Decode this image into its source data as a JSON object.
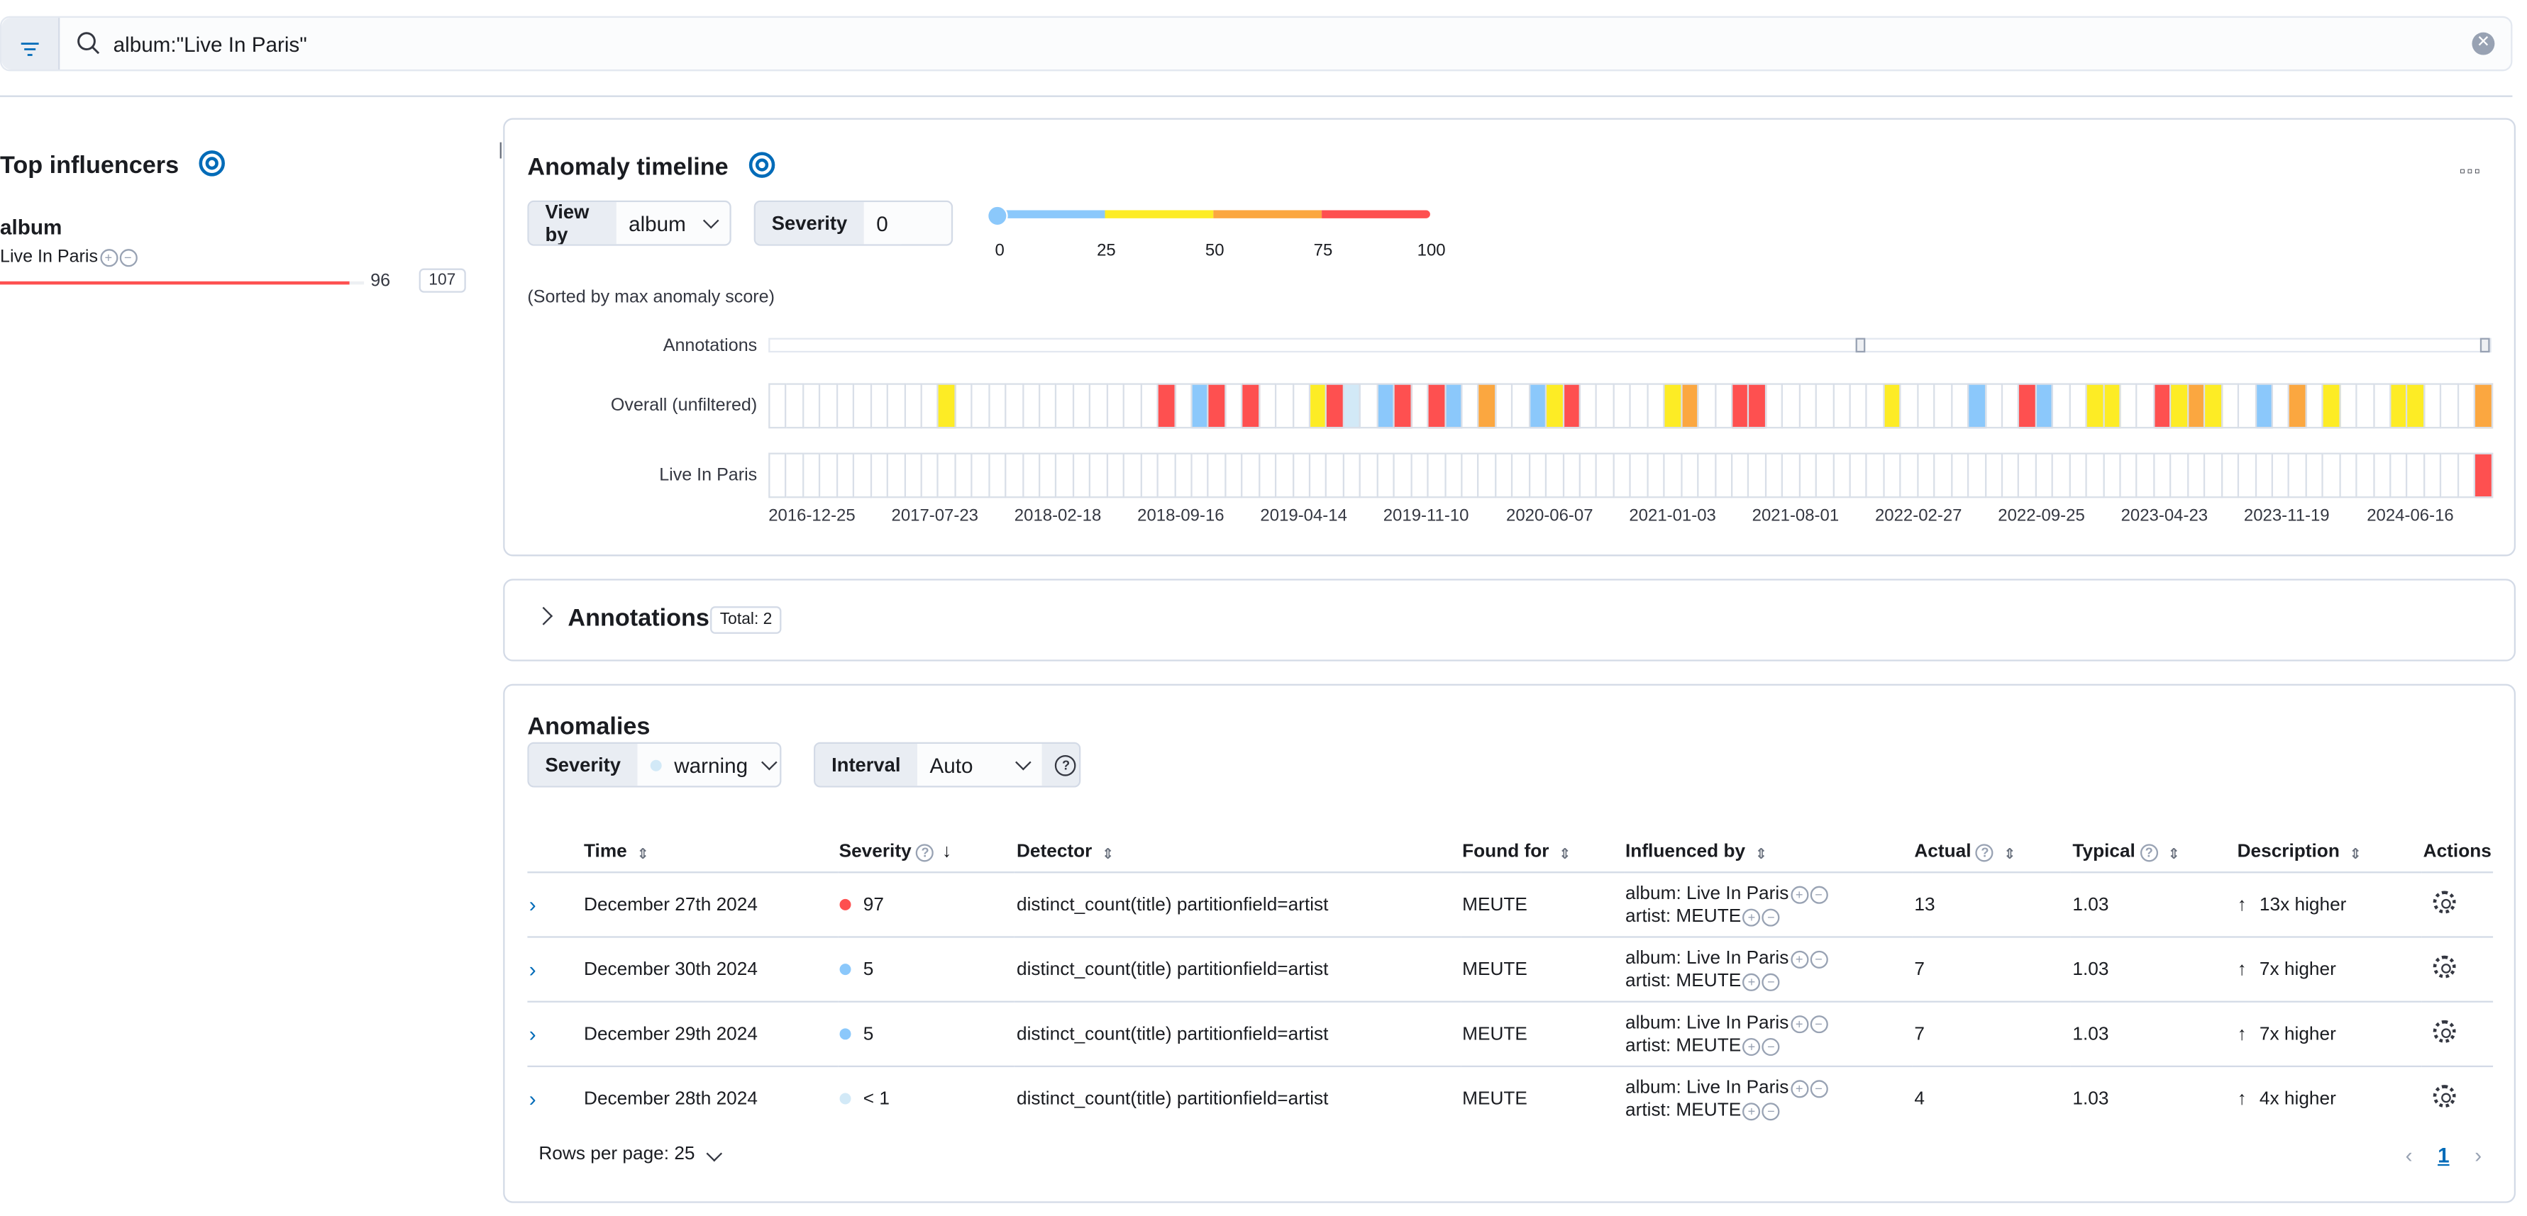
{
  "search": {
    "query": "album:\"Live In Paris\""
  },
  "influencers": {
    "title": "Top influencers",
    "field": "album",
    "item": {
      "name": "Live In Paris",
      "score": "96",
      "count": "107",
      "fill": 0.96
    }
  },
  "timeline": {
    "title": "Anomaly timeline",
    "view_by_label": "View by",
    "view_by_value": "album",
    "severity_label": "Severity",
    "severity_value": "0",
    "scale_ticks": [
      "0",
      "25",
      "50",
      "75",
      "100"
    ],
    "sorted_note": "(Sorted by max anomaly score)",
    "lane_labels": [
      "Annotations",
      "Overall (unfiltered)",
      "Live In Paris"
    ],
    "x_ticks": [
      "2016-12-25",
      "2017-07-23",
      "2018-02-18",
      "2018-09-16",
      "2019-04-14",
      "2019-11-10",
      "2020-06-07",
      "2021-01-03",
      "2021-08-01",
      "2022-02-27",
      "2022-09-25",
      "2023-04-23",
      "2023-11-19",
      "2024-06-16"
    ],
    "overall_cells": [
      "",
      "",
      "",
      "",
      "",
      "",
      "",
      "",
      "",
      "",
      "y",
      "",
      "",
      "",
      "",
      "",
      "",
      "",
      "",
      "",
      "",
      "",
      "",
      "r",
      "",
      "b",
      "r",
      "",
      "r",
      "",
      "",
      "",
      "y",
      "r",
      "l",
      "",
      "b",
      "r",
      "",
      "r",
      "b",
      "",
      "o",
      "",
      "",
      "b",
      "y",
      "r",
      "",
      "",
      "",
      "",
      "",
      "y",
      "o",
      "",
      "",
      "r",
      "r",
      "",
      "",
      "",
      "",
      "",
      "",
      "",
      "y",
      "",
      "",
      "",
      "",
      "b",
      "",
      "",
      "r",
      "b",
      "",
      "",
      "y",
      "y",
      "",
      "",
      "r",
      "y",
      "o",
      "y",
      "",
      "",
      "b",
      "",
      "o",
      "",
      "y",
      "",
      "",
      "",
      "y",
      "y",
      "",
      "",
      "",
      "o"
    ],
    "paris_cells_last": "r",
    "colors": {
      "r": "#fe5050",
      "o": "#fba740",
      "y": "#fdec25",
      "b": "#8bc8fb",
      "l": "#d2e9f7"
    }
  },
  "annotations": {
    "title": "Annotations",
    "total": "Total: 2"
  },
  "anomalies": {
    "title": "Anomalies",
    "severity_label": "Severity",
    "severity_value": "warning",
    "interval_label": "Interval",
    "interval_value": "Auto",
    "headers": [
      "Time",
      "Severity",
      "Detector",
      "Found for",
      "Influenced by",
      "Actual",
      "Typical",
      "Description",
      "Actions"
    ],
    "rows": [
      {
        "time": "December 27th 2024",
        "color": "#fe5050",
        "severity": "97",
        "detector": "distinct_count(title) partitionfield=artist",
        "found": "MEUTE",
        "inf1": "album: Live In Paris",
        "inf2": "artist: MEUTE",
        "actual": "13",
        "typical": "1.03",
        "desc": "13x higher"
      },
      {
        "time": "December 30th 2024",
        "color": "#8bc8fb",
        "severity": "5",
        "detector": "distinct_count(title) partitionfield=artist",
        "found": "MEUTE",
        "inf1": "album: Live In Paris",
        "inf2": "artist: MEUTE",
        "actual": "7",
        "typical": "1.03",
        "desc": "7x higher"
      },
      {
        "time": "December 29th 2024",
        "color": "#8bc8fb",
        "severity": "5",
        "detector": "distinct_count(title) partitionfield=artist",
        "found": "MEUTE",
        "inf1": "album: Live In Paris",
        "inf2": "artist: MEUTE",
        "actual": "7",
        "typical": "1.03",
        "desc": "7x higher"
      },
      {
        "time": "December 28th 2024",
        "color": "#d2e9f7",
        "severity": "< 1",
        "detector": "distinct_count(title) partitionfield=artist",
        "found": "MEUTE",
        "inf1": "album: Live In Paris",
        "inf2": "artist: MEUTE",
        "actual": "4",
        "typical": "1.03",
        "desc": "4x higher"
      }
    ],
    "rows_per_page": "Rows per page: 25",
    "page": "1"
  }
}
